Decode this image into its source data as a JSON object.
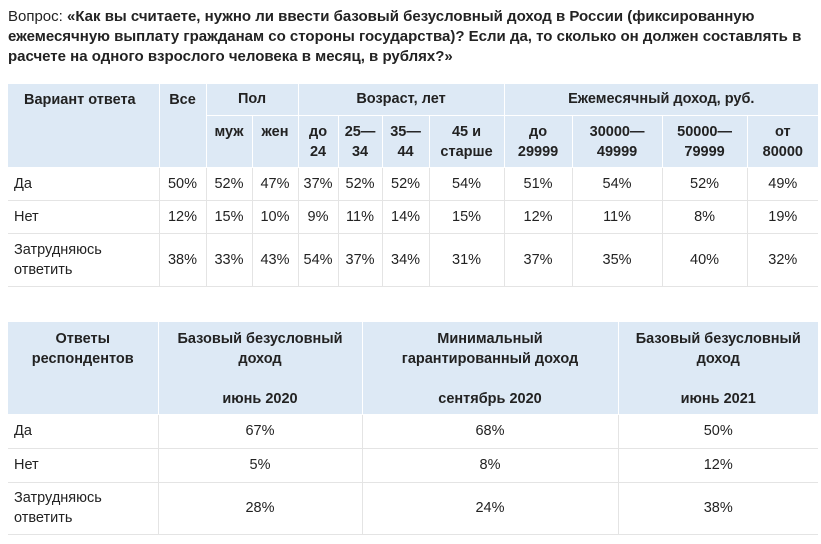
{
  "question": {
    "prefix": "Вопрос: ",
    "text": "«Как вы считаете, нужно ли ввести базовый безусловный доход в России (фиксированную ежемесячную выплату гражданам со стороны государства)? Если да, то сколько он должен составлять в расчете на одного взрослого человека в месяц, в рублях?»"
  },
  "table1": {
    "header_top": {
      "variant": "Вариант ответа",
      "all": "Все",
      "sex": "Пол",
      "age": "Возраст, лет",
      "income": "Ежемесячный доход, руб."
    },
    "header_sub": [
      "муж",
      "жен",
      "до\n24",
      "25—\n34",
      "35—\n44",
      "45 и\nстарше",
      "до\n29999",
      "30000—\n49999",
      "50000—\n79999",
      "от\n80000"
    ],
    "rows": [
      {
        "label": "Да",
        "values": [
          "50%",
          "52%",
          "47%",
          "37%",
          "52%",
          "52%",
          "54%",
          "51%",
          "54%",
          "52%",
          "49%"
        ]
      },
      {
        "label": "Нет",
        "values": [
          "12%",
          "15%",
          "10%",
          "9%",
          "11%",
          "14%",
          "15%",
          "12%",
          "11%",
          "8%",
          "19%"
        ]
      },
      {
        "label": "Затрудняюсь\nответить",
        "values": [
          "38%",
          "33%",
          "43%",
          "54%",
          "37%",
          "34%",
          "31%",
          "37%",
          "35%",
          "40%",
          "32%"
        ]
      }
    ]
  },
  "table2": {
    "headers": [
      {
        "title": "Ответы\nреспондентов",
        "date": ""
      },
      {
        "title": "Базовый безусловный\nдоход",
        "date": "июнь 2020"
      },
      {
        "title": "Минимальный\nгарантированный доход",
        "date": "сентябрь 2020"
      },
      {
        "title": "Базовый безусловный\nдоход",
        "date": "июнь 2021"
      }
    ],
    "rows": [
      {
        "label": "Да",
        "values": [
          "67%",
          "68%",
          "50%"
        ]
      },
      {
        "label": "Нет",
        "values": [
          "5%",
          "8%",
          "12%"
        ]
      },
      {
        "label": "Затрудняюсь\nответить",
        "values": [
          "28%",
          "24%",
          "38%"
        ]
      }
    ]
  }
}
